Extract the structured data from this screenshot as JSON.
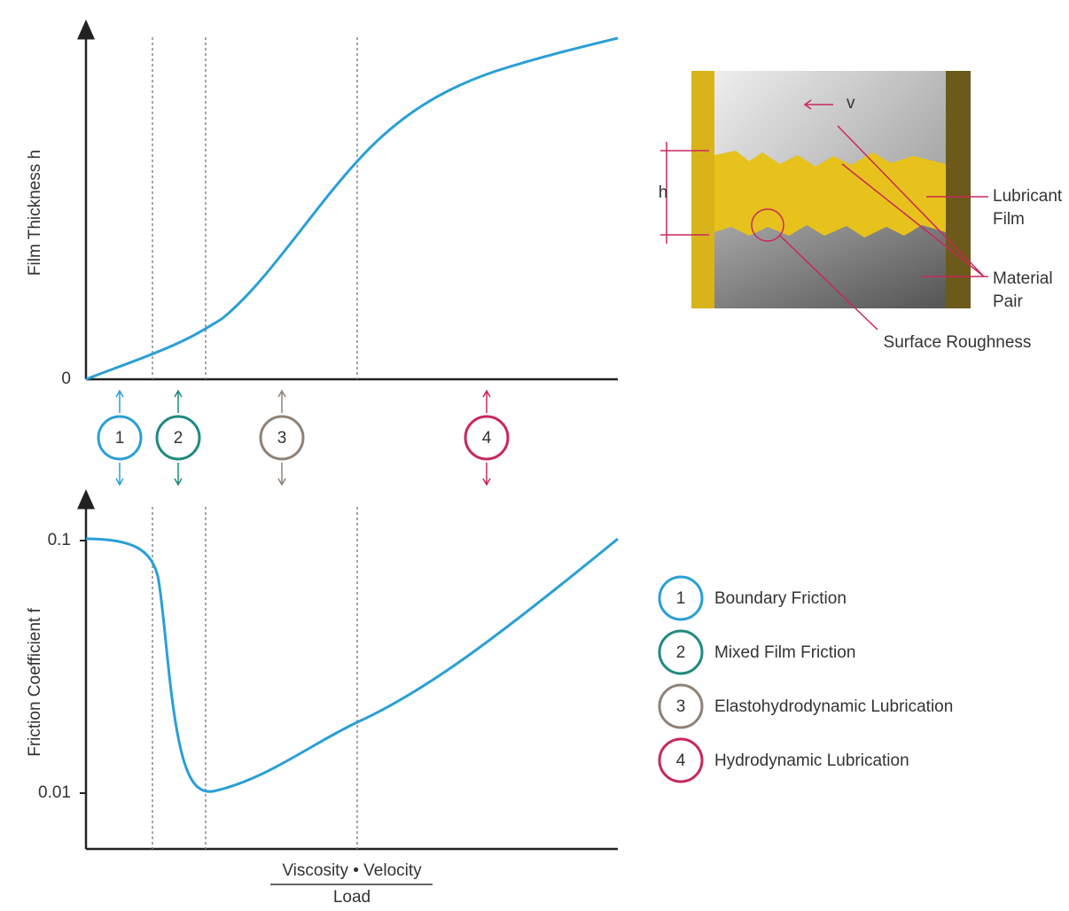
{
  "top_chart": {
    "y_label": "Film Thickness h",
    "y_tick": "0"
  },
  "bottom_chart": {
    "y_label": "Friction Coefficient f",
    "y_ticks": [
      "0.1",
      "0.01"
    ]
  },
  "x_label": {
    "numerator": "Viscosity • Velocity",
    "denominator": "Load"
  },
  "regimes": [
    {
      "number": "1",
      "label": "Boundary Friction",
      "color": "#2a9fd6"
    },
    {
      "number": "2",
      "label": "Mixed Film Friction",
      "color": "#1f8a80"
    },
    {
      "number": "3",
      "label": "Elastohydrodynamic Lubrication",
      "color": "#8f8278"
    },
    {
      "number": "4",
      "label": "Hydrodynamic Lubrication",
      "color": "#c8285a"
    }
  ],
  "inset": {
    "velocity": "v",
    "thickness": "h",
    "lubricant": [
      "Lubricant",
      "Film"
    ],
    "material": [
      "Material",
      "Pair"
    ],
    "roughness": "Surface Roughness"
  }
}
